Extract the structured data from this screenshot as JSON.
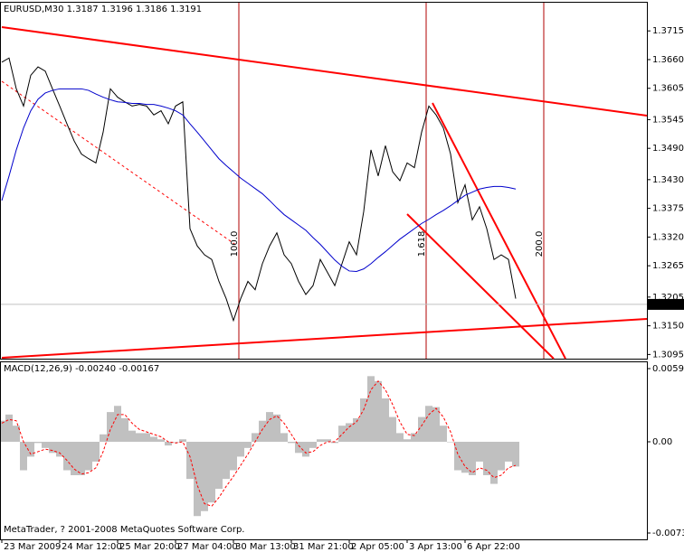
{
  "chart_data": [
    {
      "type": "line",
      "title": "EURUSD,M30  1.3187 1.3196 1.3186 1.3191",
      "categories": [
        "23 Mar 2009",
        null,
        null,
        null,
        null,
        null,
        null,
        null,
        "24 Mar 12:00",
        null,
        null,
        null,
        null,
        null,
        null,
        null,
        "25 Mar 20:00",
        null,
        null,
        null,
        null,
        null,
        null,
        null,
        "27 Mar 04:00",
        null,
        null,
        null,
        null,
        null,
        null,
        null,
        "30 Mar 13:00",
        null,
        null,
        null,
        null,
        null,
        null,
        null,
        "31 Mar 21:00",
        null,
        null,
        null,
        null,
        null,
        null,
        null,
        "2 Apr 05:00",
        null,
        null,
        null,
        null,
        null,
        null,
        null,
        "3 Apr 13:00",
        null,
        null,
        null,
        null,
        null,
        null,
        null,
        "6 Apr 22:00",
        null,
        null,
        null,
        null,
        null,
        null,
        null
      ],
      "series": [
        {
          "color": "#000000",
          "values": [
            1.3655,
            1.3663,
            1.3604,
            1.3571,
            1.363,
            1.3646,
            1.3638,
            1.3604,
            1.3571,
            1.3537,
            1.3504,
            1.3479,
            1.347,
            1.3462,
            1.3521,
            1.3604,
            1.3588,
            1.3579,
            1.3571,
            1.3574,
            1.3571,
            1.3554,
            1.3562,
            1.3537,
            1.3571,
            1.3579,
            1.3336,
            1.3303,
            1.3286,
            1.3277,
            1.3235,
            1.3202,
            1.316,
            1.3202,
            1.3235,
            1.3219,
            1.3269,
            1.3303,
            1.3328,
            1.3286,
            1.3269,
            1.3235,
            1.321,
            1.3227,
            1.3277,
            1.3252,
            1.3227,
            1.3269,
            1.3311,
            1.3286,
            1.3369,
            1.3487,
            1.3437,
            1.3495,
            1.3445,
            1.3428,
            1.3462,
            1.3453,
            1.3521,
            1.3571,
            1.3554,
            1.3529,
            1.3479,
            1.3386,
            1.342,
            1.3353,
            1.3378,
            1.3336,
            1.3277,
            1.3286,
            1.3277,
            1.3202
          ]
        },
        {
          "color": "#0000cc",
          "values": [
            1.339,
            1.3437,
            1.3487,
            1.3529,
            1.3562,
            1.3584,
            1.3596,
            1.3601,
            1.3604,
            1.3604,
            1.3604,
            1.3604,
            1.3601,
            1.3594,
            1.3588,
            1.3583,
            1.3579,
            1.3578,
            1.3576,
            1.3576,
            1.3574,
            1.3574,
            1.3571,
            1.3567,
            1.3562,
            1.3554,
            1.3537,
            1.3521,
            1.3504,
            1.3487,
            1.347,
            1.3457,
            1.3445,
            1.3433,
            1.3423,
            1.3413,
            1.3403,
            1.339,
            1.3376,
            1.3363,
            1.3353,
            1.3343,
            1.3333,
            1.3319,
            1.3306,
            1.3291,
            1.3276,
            1.3264,
            1.3255,
            1.3254,
            1.3259,
            1.3269,
            1.3281,
            1.3292,
            1.3304,
            1.3316,
            1.3326,
            1.3336,
            1.3346,
            1.3354,
            1.3363,
            1.3371,
            1.338,
            1.339,
            1.34,
            1.3406,
            1.3412,
            1.3415,
            1.3417,
            1.3417,
            1.3415,
            1.3412
          ]
        }
      ],
      "last_value": 1.3191,
      "annotations": [
        "100.0",
        "1.618",
        "200.0"
      ],
      "ylim": [
        1.3087,
        1.3769
      ],
      "yticks": [
        1.3715,
        {
          "value": 1.366,
          "label": "1.3660"
        },
        1.3605,
        1.3545,
        {
          "value": 1.349,
          "label": "1.3490"
        },
        {
          "value": 1.343,
          "label": "1.3430"
        },
        1.3375,
        {
          "value": 1.332,
          "label": "1.3320"
        },
        1.3265,
        1.3205,
        {
          "value": 1.315,
          "label": "1.3150"
        },
        1.3095
      ]
    },
    {
      "type": "macd",
      "title": "MACD(12,26,9) -0.00240 -0.00167",
      "footer": "MetaTrader, ? 2001-2008 MetaQuotes Software Corp.",
      "series": [
        {
          "color": "#c0c0c0",
          "values": [
            0.0017,
            0.0022,
            0.0013,
            -0.0023,
            -0.0012,
            -0.0001,
            -0.0005,
            -0.0009,
            -0.0012,
            -0.0023,
            -0.0027,
            -0.0027,
            -0.0023,
            -0.0016,
            0.0006,
            0.0024,
            0.0029,
            0.0019,
            0.0009,
            0.0007,
            0.0007,
            0.0004,
            0.0002,
            -0.0003,
            0,
            0.0002,
            -0.003,
            -0.006,
            -0.0056,
            -0.0049,
            -0.0038,
            -0.003,
            -0.0023,
            -0.0012,
            -0.0005,
            0.0007,
            0.0017,
            0.0024,
            0.0022,
            0.0007,
            -0.0001,
            -0.0009,
            -0.0012,
            -0.0005,
            0.0002,
            0.0002,
            -0.0001,
            0.0013,
            0.0015,
            0.0019,
            0.0035,
            0.0053,
            0.0049,
            0.0035,
            0.002,
            0.0007,
            0.0002,
            0.0007,
            0.002,
            0.0029,
            0.0028,
            0.0013,
            0,
            -0.0023,
            -0.0025,
            -0.0027,
            -0.0016,
            -0.0027,
            -0.0034,
            -0.0023,
            -0.0016,
            -0.002
          ]
        },
        {
          "color": "#ff0000",
          "values": [
            0.0015,
            0.0018,
            0.0017,
            0,
            -0.001,
            -0.0008,
            -0.0006,
            -0.0007,
            -0.0009,
            -0.0015,
            -0.0022,
            -0.0026,
            -0.0025,
            -0.0021,
            -0.0008,
            0.001,
            0.0022,
            0.0022,
            0.0015,
            0.001,
            0.0008,
            0.0006,
            0.0004,
            0,
            -0.0001,
            0,
            -0.0012,
            -0.0035,
            -0.005,
            -0.0052,
            -0.0045,
            -0.0036,
            -0.0028,
            -0.0019,
            -0.001,
            0,
            0.001,
            0.0018,
            0.0021,
            0.0015,
            0.0006,
            -0.0003,
            -0.0009,
            -0.0008,
            -0.0003,
            0,
            0,
            0.0006,
            0.0012,
            0.0016,
            0.0026,
            0.0042,
            0.0049,
            0.0042,
            0.003,
            0.0016,
            0.0006,
            0.0005,
            0.0013,
            0.0022,
            0.0027,
            0.002,
            0.0008,
            -0.001,
            -0.002,
            -0.0025,
            -0.0021,
            -0.0023,
            -0.0029,
            -0.0027,
            -0.0021,
            -0.0019
          ]
        }
      ],
      "ylim": [
        -0.00788,
        0.00642
      ],
      "yticks": [
        0.00591,
        {
          "value": 0,
          "label": "0.00"
        },
        -0.00737
      ]
    }
  ]
}
